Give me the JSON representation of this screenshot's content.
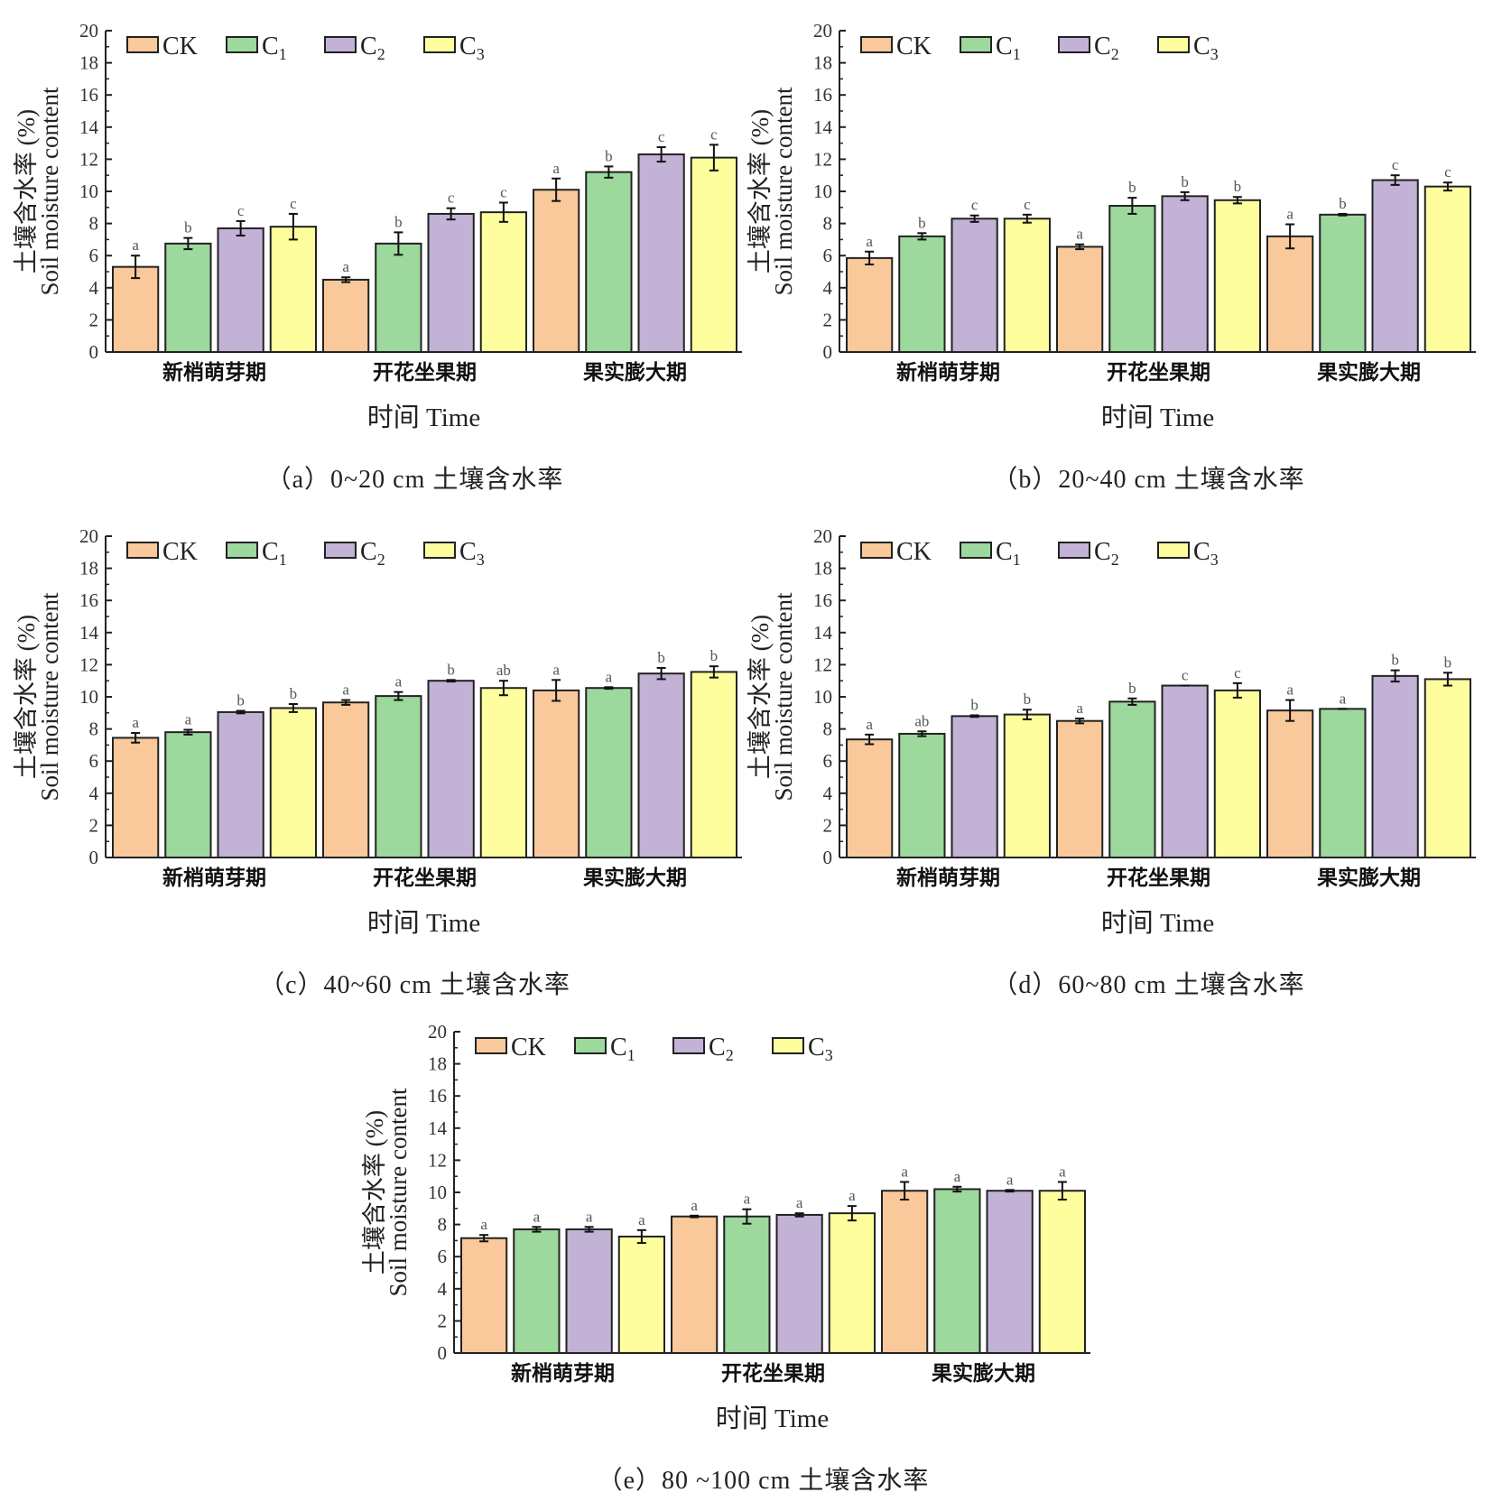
{
  "legend": [
    "CK",
    "C1",
    "C2",
    "C3"
  ],
  "legend_display": [
    {
      "main": "CK",
      "sub": ""
    },
    {
      "main": "C",
      "sub": "1"
    },
    {
      "main": "C",
      "sub": "2"
    },
    {
      "main": "C",
      "sub": "3"
    }
  ],
  "colors": {
    "CK": "#F9C89B",
    "C1": "#9DD89D",
    "C2": "#C2B2D6",
    "C3": "#FEFE9E"
  },
  "chart_data": [
    {
      "type": "bar",
      "caption": "（a）0~20 cm 土壤含水率",
      "xlabel": "时间 Time",
      "ylabel": [
        "土壤含水率 (%)",
        "Soil moisture content"
      ],
      "ylim": [
        0,
        20
      ],
      "yticks": [
        0,
        2,
        4,
        6,
        8,
        10,
        12,
        14,
        16,
        18,
        20
      ],
      "legend_position": "top-left",
      "categories": [
        "新梢萌芽期",
        "开花坐果期",
        "果实膨大期"
      ],
      "series": [
        {
          "name": "CK",
          "values": [
            5.3,
            4.5,
            10.1
          ],
          "errors": [
            0.7,
            0.15,
            0.7
          ],
          "letters": [
            "a",
            "a",
            "a"
          ]
        },
        {
          "name": "C1",
          "values": [
            6.75,
            6.75,
            11.2
          ],
          "errors": [
            0.35,
            0.7,
            0.35
          ],
          "letters": [
            "b",
            "b",
            "b"
          ]
        },
        {
          "name": "C2",
          "values": [
            7.7,
            8.6,
            12.3
          ],
          "errors": [
            0.45,
            0.35,
            0.45
          ],
          "letters": [
            "c",
            "c",
            "c"
          ]
        },
        {
          "name": "C3",
          "values": [
            7.8,
            8.7,
            12.1
          ],
          "errors": [
            0.8,
            0.6,
            0.8
          ],
          "letters": [
            "c",
            "c",
            "c"
          ]
        }
      ]
    },
    {
      "type": "bar",
      "caption": "（b）20~40 cm 土壤含水率",
      "xlabel": "时间 Time",
      "ylabel": [
        "土壤含水率 (%)",
        "Soil moisture content"
      ],
      "ylim": [
        0,
        20
      ],
      "yticks": [
        0,
        2,
        4,
        6,
        8,
        10,
        12,
        14,
        16,
        18,
        20
      ],
      "legend_position": "top-left",
      "categories": [
        "新梢萌芽期",
        "开花坐果期",
        "果实膨大期"
      ],
      "series": [
        {
          "name": "CK",
          "values": [
            5.85,
            6.55,
            7.2
          ],
          "errors": [
            0.4,
            0.15,
            0.75
          ],
          "letters": [
            "a",
            "a",
            "a"
          ]
        },
        {
          "name": "C1",
          "values": [
            7.2,
            9.1,
            8.55
          ],
          "errors": [
            0.2,
            0.5,
            0.05
          ],
          "letters": [
            "b",
            "b",
            "b"
          ]
        },
        {
          "name": "C2",
          "values": [
            8.3,
            9.7,
            10.7
          ],
          "errors": [
            0.2,
            0.25,
            0.3
          ],
          "letters": [
            "c",
            "b",
            "c"
          ]
        },
        {
          "name": "C3",
          "values": [
            8.3,
            9.45,
            10.3
          ],
          "errors": [
            0.25,
            0.2,
            0.25
          ],
          "letters": [
            "c",
            "b",
            "c"
          ]
        }
      ]
    },
    {
      "type": "bar",
      "caption": "（c）40~60 cm 土壤含水率",
      "xlabel": "时间 Time",
      "ylabel": [
        "土壤含水率 (%)",
        "Soil moisture content"
      ],
      "ylim": [
        0,
        20
      ],
      "yticks": [
        0,
        2,
        4,
        6,
        8,
        10,
        12,
        14,
        16,
        18,
        20
      ],
      "legend_position": "top-left",
      "categories": [
        "新梢萌芽期",
        "开花坐果期",
        "果实膨大期"
      ],
      "series": [
        {
          "name": "CK",
          "values": [
            7.45,
            9.65,
            10.4
          ],
          "errors": [
            0.3,
            0.15,
            0.65
          ],
          "letters": [
            "a",
            "a",
            "a"
          ]
        },
        {
          "name": "C1",
          "values": [
            7.8,
            10.05,
            10.55
          ],
          "errors": [
            0.15,
            0.25,
            0.05
          ],
          "letters": [
            "a",
            "a",
            "a"
          ]
        },
        {
          "name": "C2",
          "values": [
            9.05,
            11.0,
            11.45
          ],
          "errors": [
            0.08,
            0.05,
            0.35
          ],
          "letters": [
            "b",
            "b",
            "b"
          ]
        },
        {
          "name": "C3",
          "values": [
            9.3,
            10.55,
            11.55
          ],
          "errors": [
            0.25,
            0.45,
            0.35
          ],
          "letters": [
            "b",
            "ab",
            "b"
          ]
        }
      ]
    },
    {
      "type": "bar",
      "caption": "（d）60~80 cm 土壤含水率",
      "xlabel": "时间 Time",
      "ylabel": [
        "土壤含水率 (%)",
        "Soil moisture content"
      ],
      "ylim": [
        0,
        20
      ],
      "yticks": [
        0,
        2,
        4,
        6,
        8,
        10,
        12,
        14,
        16,
        18,
        20
      ],
      "legend_position": "top-left",
      "categories": [
        "新梢萌芽期",
        "开花坐果期",
        "果实膨大期"
      ],
      "series": [
        {
          "name": "CK",
          "values": [
            7.35,
            8.5,
            9.15
          ],
          "errors": [
            0.3,
            0.15,
            0.65
          ],
          "letters": [
            "a",
            "a",
            "a"
          ]
        },
        {
          "name": "C1",
          "values": [
            7.7,
            9.7,
            9.25
          ],
          "errors": [
            0.15,
            0.2,
            0.0
          ],
          "letters": [
            "ab",
            "b",
            "a"
          ]
        },
        {
          "name": "C2",
          "values": [
            8.8,
            10.7,
            11.3
          ],
          "errors": [
            0.05,
            0.0,
            0.35
          ],
          "letters": [
            "b",
            "c",
            "b"
          ]
        },
        {
          "name": "C3",
          "values": [
            8.9,
            10.4,
            11.1
          ],
          "errors": [
            0.3,
            0.45,
            0.4
          ],
          "letters": [
            "b",
            "c",
            "b"
          ]
        }
      ]
    },
    {
      "type": "bar",
      "caption": "（e）80 ~100 cm 土壤含水率",
      "xlabel": "时间 Time",
      "ylabel": [
        "土壤含水率 (%)",
        "Soil moisture content"
      ],
      "ylim": [
        0,
        20
      ],
      "yticks": [
        0,
        2,
        4,
        6,
        8,
        10,
        12,
        14,
        16,
        18,
        20
      ],
      "legend_position": "top-left",
      "categories": [
        "新梢萌芽期",
        "开花坐果期",
        "果实膨大期"
      ],
      "series": [
        {
          "name": "CK",
          "values": [
            7.15,
            8.5,
            10.1
          ],
          "errors": [
            0.2,
            0.05,
            0.55
          ],
          "letters": [
            "a",
            "a",
            "a"
          ]
        },
        {
          "name": "C1",
          "values": [
            7.7,
            8.5,
            10.2
          ],
          "errors": [
            0.15,
            0.45,
            0.15
          ],
          "letters": [
            "a",
            "a",
            "a"
          ]
        },
        {
          "name": "C2",
          "values": [
            7.7,
            8.6,
            10.1
          ],
          "errors": [
            0.15,
            0.1,
            0.05
          ],
          "letters": [
            "a",
            "a",
            "a"
          ]
        },
        {
          "name": "C3",
          "values": [
            7.25,
            8.7,
            10.1
          ],
          "errors": [
            0.4,
            0.45,
            0.55
          ],
          "letters": [
            "a",
            "a",
            "a"
          ]
        }
      ]
    }
  ]
}
